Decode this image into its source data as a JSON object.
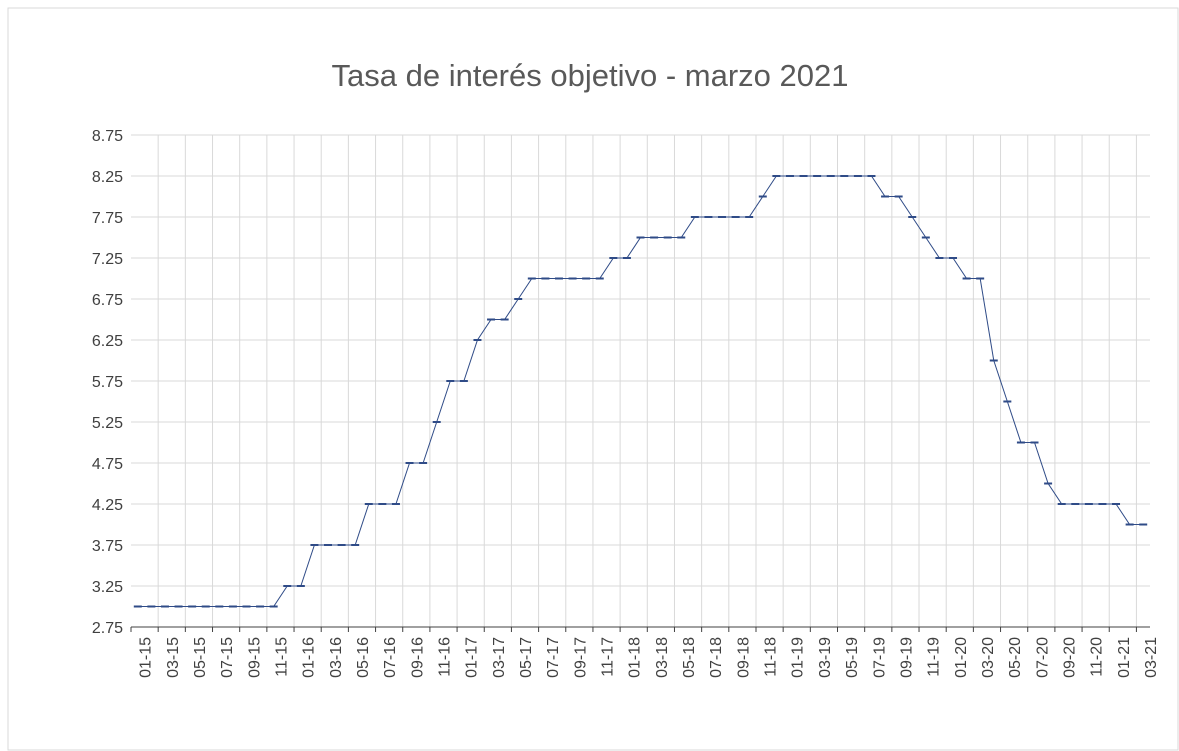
{
  "chart_data": {
    "type": "line",
    "title": "Tasa de interés objetivo - marzo 2021",
    "categories": [
      "01-15",
      null,
      "03-15",
      null,
      "05-15",
      null,
      "07-15",
      null,
      "09-15",
      null,
      "11-15",
      null,
      "01-16",
      null,
      "03-16",
      null,
      "05-16",
      null,
      "07-16",
      null,
      "09-16",
      null,
      "11-16",
      null,
      "01-17",
      null,
      "03-17",
      null,
      "05-17",
      null,
      "07-17",
      null,
      "09-17",
      null,
      "11-17",
      null,
      "01-18",
      null,
      "03-18",
      null,
      "05-18",
      null,
      "07-18",
      null,
      "09-18",
      null,
      "11-18",
      null,
      "01-19",
      null,
      "03-19",
      null,
      "05-19",
      null,
      "07-19",
      null,
      "09-19",
      null,
      "11-19",
      null,
      "01-20",
      null,
      "03-20",
      null,
      "05-20",
      null,
      "07-20",
      null,
      "09-20",
      null,
      "11-20",
      null,
      "01-21",
      null,
      "03-21"
    ],
    "series": [
      {
        "color": "#2f4b87",
        "values": [
          3,
          3,
          3,
          3,
          3,
          3,
          3,
          3,
          3,
          3,
          3,
          3.25,
          3.25,
          3.75,
          3.75,
          3.75,
          3.75,
          4.25,
          4.25,
          4.25,
          4.75,
          4.75,
          5.25,
          5.75,
          5.75,
          6.25,
          6.5,
          6.5,
          6.75,
          7,
          7,
          7,
          7,
          7,
          7,
          7.25,
          7.25,
          7.5,
          7.5,
          7.5,
          7.5,
          7.75,
          7.75,
          7.75,
          7.75,
          7.75,
          8,
          8.25,
          8.25,
          8.25,
          8.25,
          8.25,
          8.25,
          8.25,
          8.25,
          8,
          8,
          7.75,
          7.5,
          7.25,
          7.25,
          7,
          7,
          6,
          5.5,
          5,
          5,
          4.5,
          4.25,
          4.25,
          4.25,
          4.25,
          4.25,
          4,
          4
        ]
      }
    ],
    "ylim": [
      2.75,
      8.75
    ],
    "yticks": [
      2.75,
      3.25,
      3.75,
      4.25,
      4.75,
      5.25,
      5.75,
      6.25,
      6.75,
      7.25,
      7.75,
      8.25,
      8.75
    ],
    "grid": true
  }
}
